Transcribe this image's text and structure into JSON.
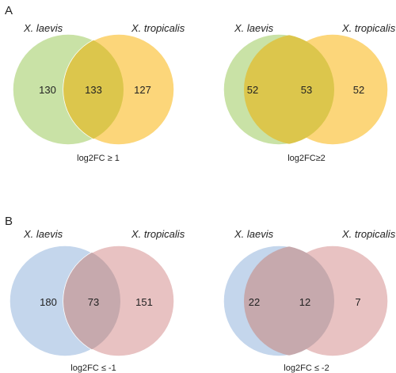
{
  "panels": [
    {
      "label": "A",
      "diagrams": [
        {
          "left_name": "X. laevis",
          "right_name": "X. tropicalis",
          "left_only": "130",
          "overlap": "133",
          "right_only": "127",
          "caption": "log2FC ≥ 1",
          "left_color": "#c9e2a6",
          "right_color": "#fcd67a",
          "overlap_color": "#dcc64c"
        },
        {
          "left_name": "X. laevis",
          "right_name": "X. tropicalis",
          "left_only": "52",
          "overlap": "53",
          "right_only": "52",
          "caption": "log2FC≥2",
          "left_color": "#c9e2a6",
          "right_color": "#fcd67a",
          "overlap_color": "#dcc64c"
        }
      ]
    },
    {
      "label": "B",
      "diagrams": [
        {
          "left_name": "X. laevis",
          "right_name": "X. tropicalis",
          "left_only": "180",
          "overlap": "73",
          "right_only": "151",
          "caption": "log2FC ≤ -1",
          "left_color": "#c4d6ec",
          "right_color": "#e8c2c2",
          "overlap_color": "#c6a9ad"
        },
        {
          "left_name": "X. laevis",
          "right_name": "X. tropicalis",
          "left_only": "22",
          "overlap": "12",
          "right_only": "7",
          "caption": "log2FC ≤ -2",
          "left_color": "#c4d6ec",
          "right_color": "#e8c2c2",
          "overlap_color": "#c6a9ad"
        }
      ]
    }
  ]
}
